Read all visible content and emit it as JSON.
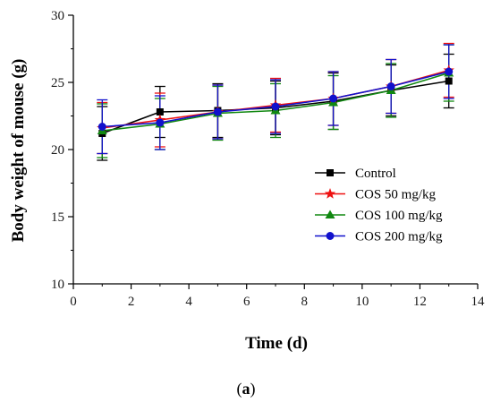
{
  "chart_data": {
    "type": "line",
    "title": "",
    "xlabel": "Time (d)",
    "ylabel": "Body weight of mouse (g)",
    "xlim": [
      0,
      14
    ],
    "ylim": [
      10,
      30
    ],
    "xticks": [
      0,
      2,
      4,
      6,
      8,
      10,
      12,
      14
    ],
    "yticks": [
      10,
      15,
      20,
      25,
      30
    ],
    "grid": false,
    "legend_position": "right",
    "x": [
      1,
      3,
      5,
      7,
      9,
      11,
      13
    ],
    "series": [
      {
        "name": "Control",
        "color": "#000000",
        "marker": "square",
        "values": [
          21.2,
          22.8,
          22.9,
          23.1,
          23.6,
          24.4,
          25.1
        ],
        "error": [
          2.0,
          1.9,
          2.0,
          2.0,
          2.1,
          1.9,
          2.0
        ]
      },
      {
        "name": "COS 50 mg/kg",
        "color": "#ee1111",
        "marker": "star",
        "values": [
          21.6,
          22.2,
          22.8,
          23.3,
          23.8,
          24.7,
          25.9
        ],
        "error": [
          1.9,
          2.0,
          2.0,
          2.0,
          2.0,
          2.0,
          2.0
        ]
      },
      {
        "name": "COS 100 mg/kg",
        "color": "#118811",
        "marker": "triangle",
        "values": [
          21.4,
          21.9,
          22.7,
          22.9,
          23.5,
          24.4,
          25.7
        ],
        "error": [
          2.0,
          1.9,
          2.0,
          2.0,
          2.0,
          2.0,
          2.1
        ]
      },
      {
        "name": "COS 200 mg/kg",
        "color": "#1111cc",
        "marker": "circle",
        "values": [
          21.7,
          22.0,
          22.8,
          23.2,
          23.8,
          24.7,
          25.8
        ],
        "error": [
          2.0,
          2.0,
          2.0,
          2.0,
          2.0,
          2.0,
          2.0
        ]
      }
    ]
  },
  "caption": {
    "open": "(",
    "letter": "a",
    "close": ")"
  }
}
